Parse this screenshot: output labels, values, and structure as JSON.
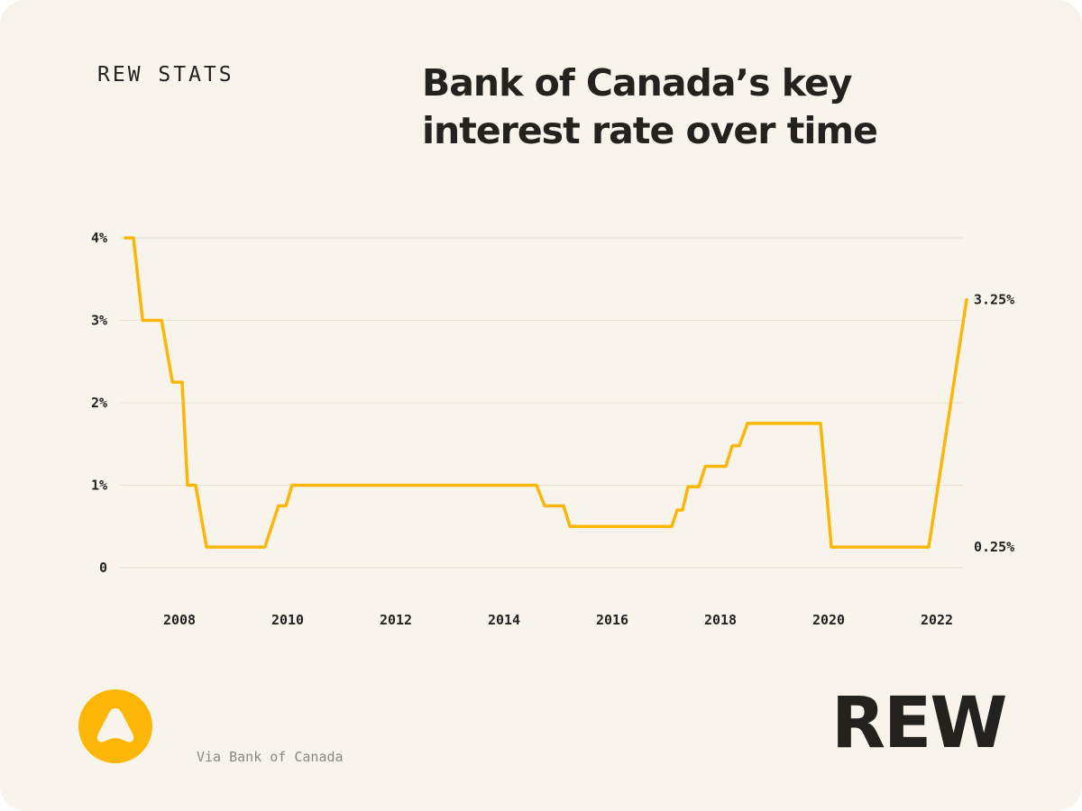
{
  "brand_tag": "REW STATS",
  "title_line1": "Bank of Canada’s key",
  "title_line2": "interest rate over time",
  "source": "Via Bank of Canada",
  "wordmark": "REW",
  "colors": {
    "line": "#fbb608",
    "grid": "#e6e1d3",
    "background": "#f8f4ec",
    "text": "#222222"
  },
  "chart_data": {
    "type": "line",
    "title": "Bank of Canada’s key interest rate over time",
    "xlabel": "",
    "ylabel": "",
    "xlim": [
      2007.0,
      2022.55
    ],
    "ylim": [
      0,
      4
    ],
    "grid": true,
    "y_ticks": [
      {
        "value": 0,
        "label": "0"
      },
      {
        "value": 1,
        "label": "1%"
      },
      {
        "value": 2,
        "label": "2%"
      },
      {
        "value": 3,
        "label": "3%"
      },
      {
        "value": 4,
        "label": "4%"
      }
    ],
    "x_ticks": [
      {
        "value": 2008,
        "label": "2008"
      },
      {
        "value": 2010,
        "label": "2010"
      },
      {
        "value": 2012,
        "label": "2012"
      },
      {
        "value": 2014,
        "label": "2014"
      },
      {
        "value": 2016,
        "label": "2016"
      },
      {
        "value": 2018,
        "label": "2018"
      },
      {
        "value": 2020,
        "label": "2020"
      },
      {
        "value": 2022,
        "label": "2022"
      }
    ],
    "series": [
      {
        "name": "Key interest rate",
        "points": [
          [
            2007.0,
            4.0
          ],
          [
            2007.15,
            4.0
          ],
          [
            2007.32,
            3.0
          ],
          [
            2007.67,
            3.0
          ],
          [
            2007.87,
            2.25
          ],
          [
            2008.05,
            2.25
          ],
          [
            2008.15,
            1.0
          ],
          [
            2008.3,
            1.0
          ],
          [
            2008.5,
            0.25
          ],
          [
            2009.58,
            0.25
          ],
          [
            2009.83,
            0.75
          ],
          [
            2009.97,
            0.75
          ],
          [
            2010.08,
            1.0
          ],
          [
            2014.6,
            1.0
          ],
          [
            2014.75,
            0.75
          ],
          [
            2015.1,
            0.75
          ],
          [
            2015.22,
            0.5
          ],
          [
            2017.1,
            0.5
          ],
          [
            2017.2,
            0.7
          ],
          [
            2017.3,
            0.7
          ],
          [
            2017.4,
            0.98
          ],
          [
            2017.6,
            0.98
          ],
          [
            2017.72,
            1.23
          ],
          [
            2018.1,
            1.23
          ],
          [
            2018.22,
            1.48
          ],
          [
            2018.35,
            1.48
          ],
          [
            2018.5,
            1.75
          ],
          [
            2019.85,
            1.75
          ],
          [
            2020.05,
            0.25
          ],
          [
            2021.85,
            0.25
          ],
          [
            2022.55,
            3.25
          ]
        ]
      }
    ],
    "annotations": [
      {
        "x": 2022.55,
        "y": 3.25,
        "label": "3.25%"
      },
      {
        "x": 2022.55,
        "y": 0.25,
        "label": "0.25%"
      }
    ]
  }
}
